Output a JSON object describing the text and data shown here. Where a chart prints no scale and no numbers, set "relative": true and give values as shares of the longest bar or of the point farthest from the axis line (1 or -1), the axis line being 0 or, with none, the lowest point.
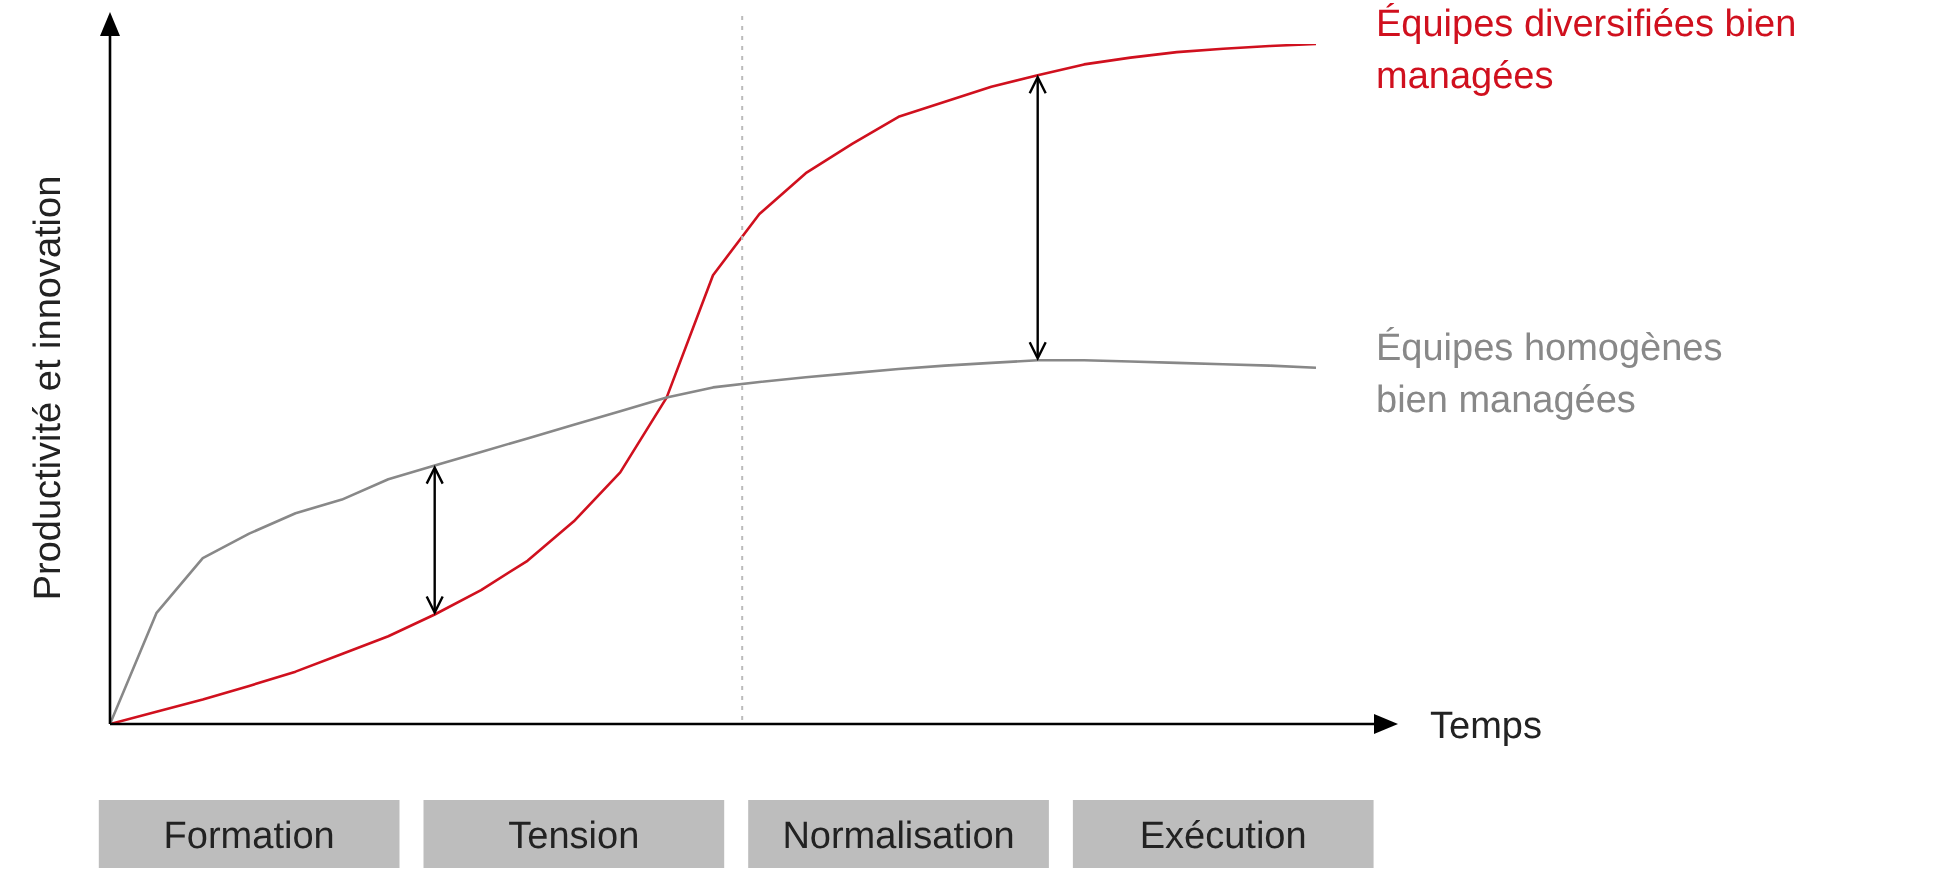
{
  "chart_data": {
    "type": "line",
    "relative": true,
    "xlabel": "Temps",
    "ylabel": "Productivité et innovation",
    "categories": [
      null,
      null,
      null,
      "Formation",
      null,
      null,
      null,
      null,
      null,
      null,
      "Tension",
      null,
      null,
      null,
      null,
      null,
      null,
      "Normalisation",
      null,
      null,
      null,
      null,
      null,
      null,
      "Exécution",
      null,
      null
    ],
    "series": [
      {
        "name": "Équipes diversifiées bien managées",
        "color": "#d0101e",
        "values": [
          0,
          0.018,
          0.036,
          0.056,
          0.077,
          0.103,
          0.129,
          0.161,
          0.197,
          0.24,
          0.298,
          0.37,
          0.48,
          0.66,
          0.75,
          0.81,
          0.853,
          0.893,
          0.915,
          0.937,
          0.954,
          0.97,
          0.98,
          0.988,
          0.993,
          0.997,
          1
        ]
      },
      {
        "name": "Équipes homogènes bien managées",
        "color": "#888888",
        "values": [
          0,
          0.163,
          0.244,
          0.28,
          0.31,
          0.33,
          0.36,
          0.38,
          0.4,
          0.42,
          0.44,
          0.46,
          0.48,
          0.495,
          0.503,
          0.51,
          0.516,
          0.522,
          0.527,
          0.531,
          0.535,
          0.535,
          0.533,
          0.531,
          0.529,
          0.527,
          0.524
        ]
      }
    ],
    "grid": false,
    "legend": false,
    "marker": "none",
    "line_style": "solid"
  }
}
